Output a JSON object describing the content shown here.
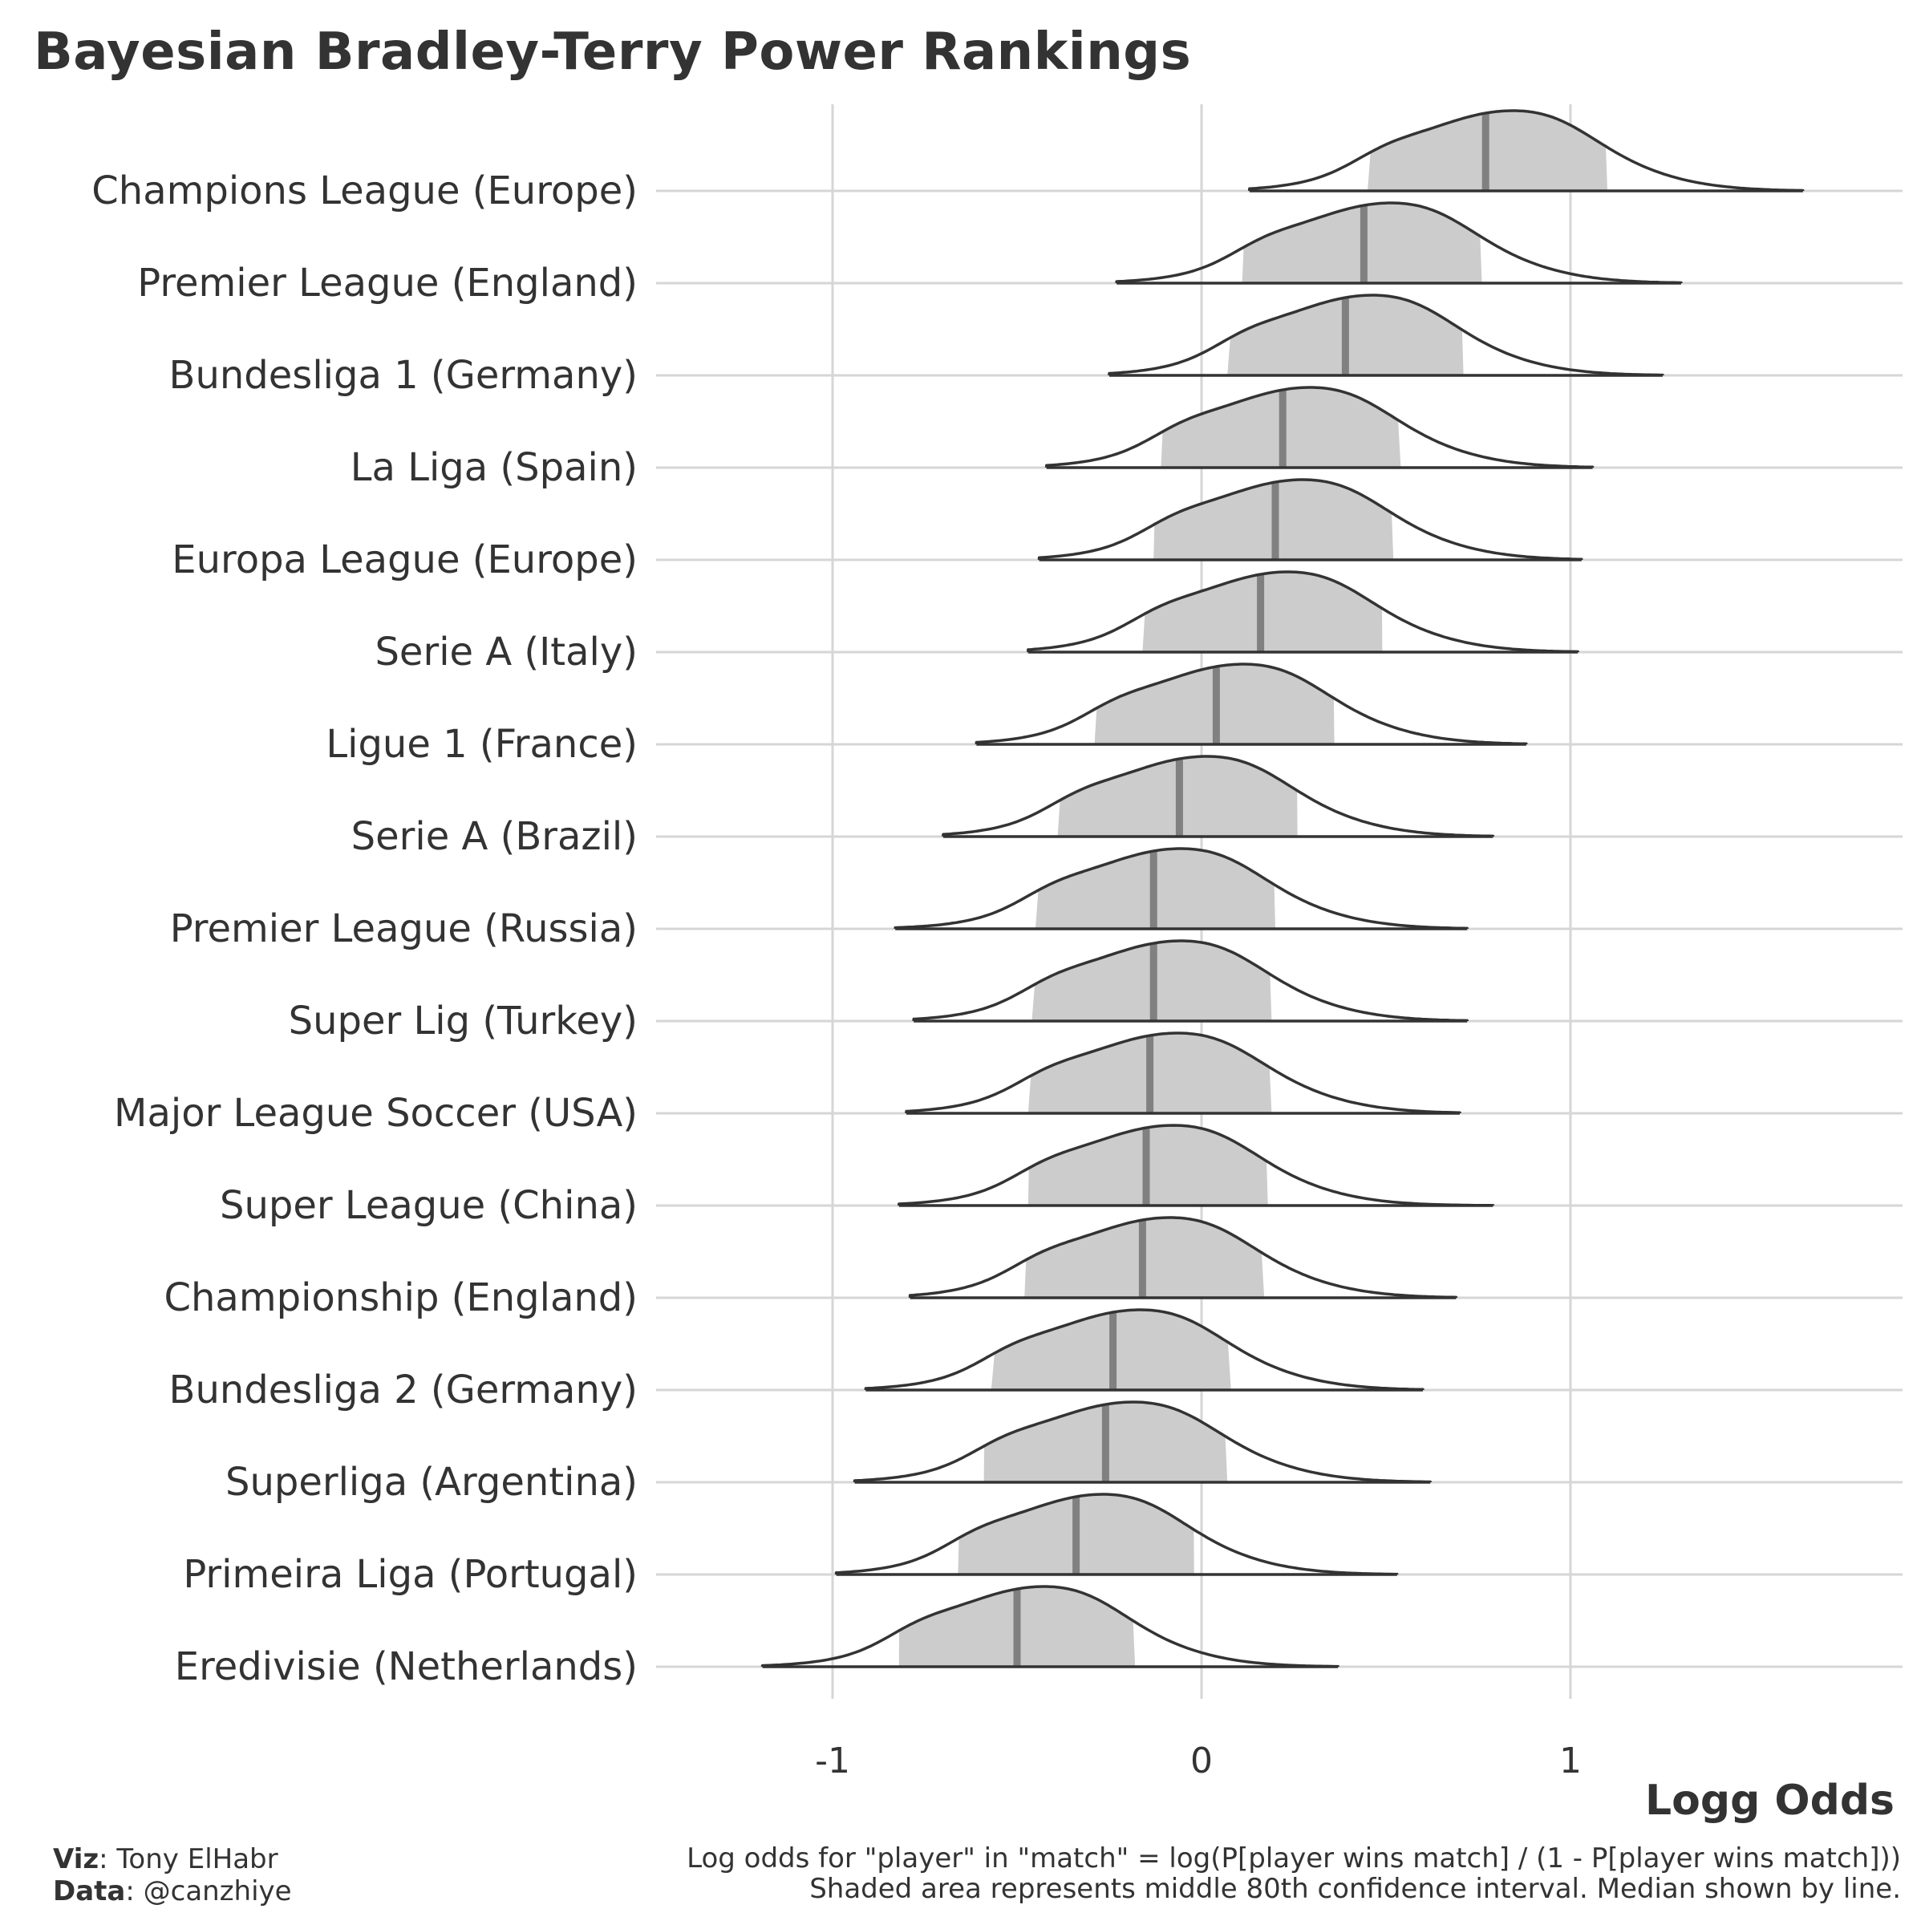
{
  "chart_data": {
    "type": "ridgeline",
    "title": "Bayesian Bradley-Terry Power Rankings",
    "xlabel": "Logg Odds",
    "ylabel": "",
    "xlim": [
      -1.5,
      1.9
    ],
    "xticks": [
      -1,
      0,
      1
    ],
    "xtick_labels": [
      "-1",
      "0",
      "1"
    ],
    "grid": true,
    "categories": [
      "Champions League (Europe)",
      "Premier League (England)",
      "Bundesliga 1 (Germany)",
      "La Liga (Spain)",
      "Europa League (Europe)",
      "Serie A (Italy)",
      "Ligue 1 (France)",
      "Serie A (Brazil)",
      "Premier League (Russia)",
      "Super Lig (Turkey)",
      "Major League Soccer (USA)",
      "Super League (China)",
      "Championship (England)",
      "Bundesliga 2 (Germany)",
      "Superliga (Argentina)",
      "Primeira Liga (Portugal)",
      "Eredivisie (Netherlands)"
    ],
    "series": [
      {
        "name": "Champions League (Europe)",
        "median": 0.77,
        "lo80": 0.45,
        "hi80": 1.1,
        "min": 0.13,
        "max": 1.63
      },
      {
        "name": "Premier League (England)",
        "median": 0.44,
        "lo80": 0.11,
        "hi80": 0.76,
        "min": -0.23,
        "max": 1.3
      },
      {
        "name": "Bundesliga 1 (Germany)",
        "median": 0.39,
        "lo80": 0.07,
        "hi80": 0.71,
        "min": -0.25,
        "max": 1.25
      },
      {
        "name": "La Liga (Spain)",
        "median": 0.22,
        "lo80": -0.11,
        "hi80": 0.54,
        "min": -0.42,
        "max": 1.06
      },
      {
        "name": "Europa League (Europe)",
        "median": 0.2,
        "lo80": -0.13,
        "hi80": 0.52,
        "min": -0.44,
        "max": 1.03
      },
      {
        "name": "Serie A (Italy)",
        "median": 0.16,
        "lo80": -0.16,
        "hi80": 0.49,
        "min": -0.47,
        "max": 1.02
      },
      {
        "name": "Ligue 1 (France)",
        "median": 0.04,
        "lo80": -0.29,
        "hi80": 0.36,
        "min": -0.61,
        "max": 0.88
      },
      {
        "name": "Serie A (Brazil)",
        "median": -0.06,
        "lo80": -0.39,
        "hi80": 0.26,
        "min": -0.7,
        "max": 0.79
      },
      {
        "name": "Premier League (Russia)",
        "median": -0.13,
        "lo80": -0.45,
        "hi80": 0.2,
        "min": -0.83,
        "max": 0.72
      },
      {
        "name": "Super Lig (Turkey)",
        "median": -0.13,
        "lo80": -0.46,
        "hi80": 0.19,
        "min": -0.78,
        "max": 0.72
      },
      {
        "name": "Major League Soccer (USA)",
        "median": -0.14,
        "lo80": -0.47,
        "hi80": 0.19,
        "min": -0.8,
        "max": 0.7
      },
      {
        "name": "Super League (China)",
        "median": -0.15,
        "lo80": -0.47,
        "hi80": 0.18,
        "min": -0.82,
        "max": 0.79
      },
      {
        "name": "Championship (England)",
        "median": -0.16,
        "lo80": -0.48,
        "hi80": 0.17,
        "min": -0.79,
        "max": 0.69
      },
      {
        "name": "Bundesliga 2 (Germany)",
        "median": -0.24,
        "lo80": -0.57,
        "hi80": 0.08,
        "min": -0.91,
        "max": 0.6
      },
      {
        "name": "Superliga (Argentina)",
        "median": -0.26,
        "lo80": -0.59,
        "hi80": 0.07,
        "min": -0.94,
        "max": 0.62
      },
      {
        "name": "Primeira Liga (Portugal)",
        "median": -0.34,
        "lo80": -0.66,
        "hi80": -0.02,
        "min": -0.99,
        "max": 0.53
      },
      {
        "name": "Eredivisie (Netherlands)",
        "median": -0.5,
        "lo80": -0.82,
        "hi80": -0.18,
        "min": -1.19,
        "max": 0.37
      }
    ],
    "colors": {
      "fill": "#cccccc",
      "outline": "#333333",
      "median": "#808080",
      "grid": "#d6d6d6",
      "text": "#333333"
    }
  },
  "caption": {
    "viz_label": "Viz",
    "viz_value": ": Tony ElHabr",
    "data_label": "Data",
    "data_value": ": @canzhiye",
    "note_line1": "Log odds for \"player\" in \"match\" = log(P[player wins match] / (1 - P[player wins match]))",
    "note_line2": "Shaded area represents middle 80th confidence interval. Median shown by line."
  }
}
